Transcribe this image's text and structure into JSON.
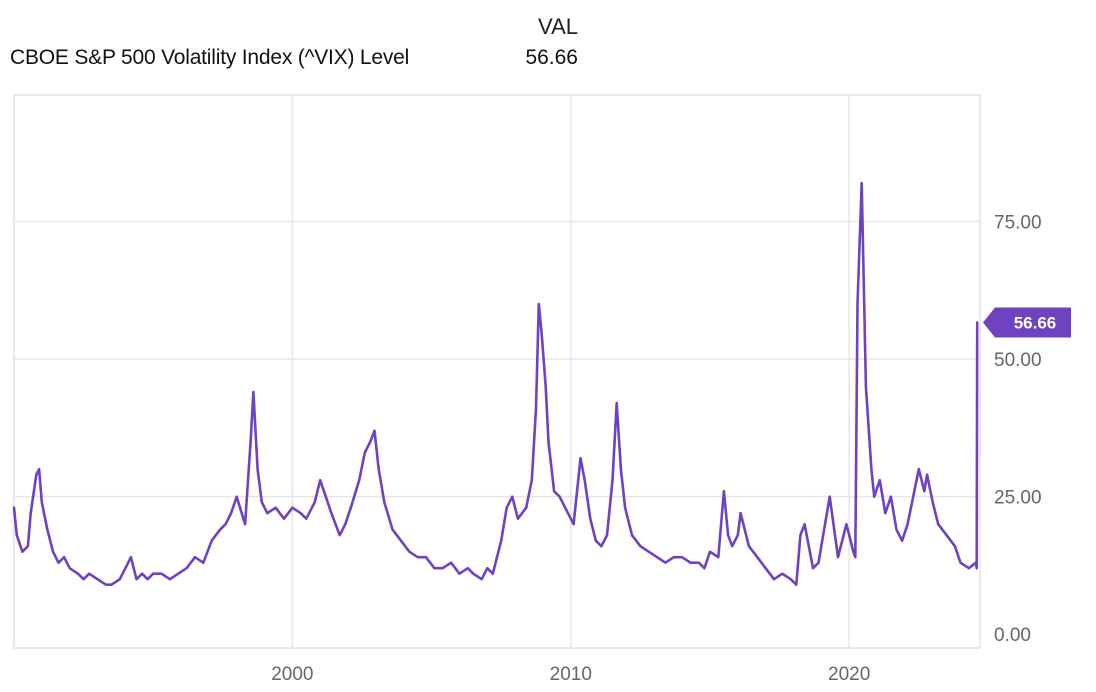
{
  "legend": {
    "header": "VAL",
    "series_name": "CBOE S&P 500 Volatility Index (^VIX) Level",
    "series_value": "56.66"
  },
  "colors": {
    "series": "#6f42c1",
    "grid": "#e6e6e6",
    "axis_text": "#666666"
  },
  "chart_data": {
    "type": "line",
    "title": "",
    "xlabel": "",
    "ylabel": "",
    "xlim": [
      1990.0,
      2024.7
    ],
    "ylim": [
      -2.5,
      98
    ],
    "x_ticks": [
      2000,
      2010,
      2020
    ],
    "x_tick_labels": [
      "2000",
      "2010",
      "2020"
    ],
    "y_ticks": [
      0,
      25,
      50,
      75
    ],
    "y_tick_labels": [
      "0.00",
      "25.00",
      "50.00",
      "75.00"
    ],
    "grid": true,
    "last_value_label": "56.66",
    "series": [
      {
        "name": "CBOE S&P 500 Volatility Index (^VIX) Level",
        "x": [
          1990.0,
          1990.1,
          1990.3,
          1990.5,
          1990.6,
          1990.8,
          1990.9,
          1991.0,
          1991.2,
          1991.4,
          1991.6,
          1991.8,
          1992.0,
          1992.3,
          1992.5,
          1992.7,
          1993.0,
          1993.3,
          1993.5,
          1993.8,
          1994.0,
          1994.2,
          1994.4,
          1994.6,
          1994.8,
          1995.0,
          1995.3,
          1995.6,
          1995.9,
          1996.2,
          1996.5,
          1996.8,
          1997.1,
          1997.4,
          1997.6,
          1997.8,
          1998.0,
          1998.3,
          1998.5,
          1998.6,
          1998.75,
          1998.9,
          1999.1,
          1999.4,
          1999.7,
          2000.0,
          2000.3,
          2000.5,
          2000.8,
          2001.0,
          2001.2,
          2001.4,
          2001.7,
          2001.9,
          2002.1,
          2002.4,
          2002.6,
          2002.8,
          2002.95,
          2003.1,
          2003.3,
          2003.6,
          2003.9,
          2004.2,
          2004.5,
          2004.8,
          2005.1,
          2005.4,
          2005.7,
          2006.0,
          2006.3,
          2006.5,
          2006.8,
          2007.0,
          2007.2,
          2007.5,
          2007.7,
          2007.9,
          2008.1,
          2008.4,
          2008.6,
          2008.75,
          2008.85,
          2008.95,
          2009.1,
          2009.2,
          2009.4,
          2009.6,
          2009.9,
          2010.1,
          2010.35,
          2010.5,
          2010.7,
          2010.9,
          2011.1,
          2011.3,
          2011.5,
          2011.65,
          2011.8,
          2011.95,
          2012.2,
          2012.5,
          2012.8,
          2013.1,
          2013.4,
          2013.7,
          2014.0,
          2014.3,
          2014.6,
          2014.8,
          2015.0,
          2015.3,
          2015.5,
          2015.65,
          2015.8,
          2016.0,
          2016.1,
          2016.4,
          2016.7,
          2017.0,
          2017.3,
          2017.6,
          2017.9,
          2018.1,
          2018.25,
          2018.4,
          2018.7,
          2018.9,
          2019.0,
          2019.3,
          2019.6,
          2019.9,
          2020.0,
          2020.15,
          2020.22,
          2020.3,
          2020.45,
          2020.6,
          2020.8,
          2020.9,
          2021.1,
          2021.3,
          2021.5,
          2021.7,
          2021.9,
          2022.1,
          2022.3,
          2022.5,
          2022.7,
          2022.8,
          2023.0,
          2023.2,
          2023.5,
          2023.8,
          2024.0,
          2024.3,
          2024.55,
          2024.58,
          2024.6
        ],
        "y": [
          23,
          18,
          15,
          16,
          22,
          29,
          30,
          24,
          19,
          15,
          13,
          14,
          12,
          11,
          10,
          11,
          10,
          9,
          9,
          10,
          12,
          14,
          10,
          11,
          10,
          11,
          11,
          10,
          11,
          12,
          14,
          13,
          17,
          19,
          20,
          22,
          25,
          20,
          35,
          44,
          30,
          24,
          22,
          23,
          21,
          23,
          22,
          21,
          24,
          28,
          25,
          22,
          18,
          20,
          23,
          28,
          33,
          35,
          37,
          30,
          24,
          19,
          17,
          15,
          14,
          14,
          12,
          12,
          13,
          11,
          12,
          11,
          10,
          12,
          11,
          17,
          23,
          25,
          21,
          23,
          28,
          41,
          60,
          55,
          45,
          35,
          26,
          25,
          22,
          20,
          32,
          28,
          21,
          17,
          16,
          18,
          28,
          42,
          30,
          23,
          18,
          16,
          15,
          14,
          13,
          14,
          14,
          13,
          13,
          12,
          15,
          14,
          26,
          18,
          16,
          18,
          22,
          16,
          14,
          12,
          10,
          11,
          10,
          9,
          18,
          20,
          12,
          13,
          16,
          25,
          14,
          20,
          18,
          15,
          14,
          60,
          82,
          45,
          30,
          25,
          28,
          22,
          25,
          19,
          17,
          20,
          25,
          30,
          26,
          29,
          24,
          20,
          18,
          16,
          13,
          12,
          13,
          12,
          56.66
        ]
      }
    ]
  }
}
